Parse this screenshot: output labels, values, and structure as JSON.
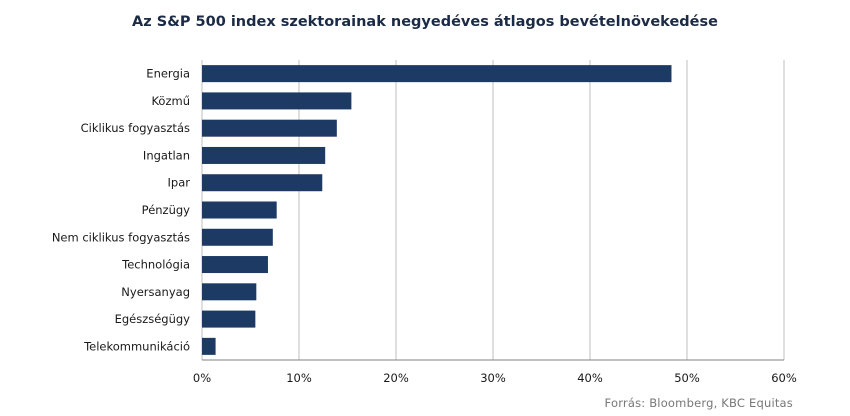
{
  "chart_data": {
    "type": "bar",
    "orientation": "horizontal",
    "title": "Az S&P 500 index szektorainak negyedéves átlagos bevételnövekedése",
    "categories": [
      "Energia",
      "Közmű",
      "Ciklikus fogyasztás",
      "Ingatlan",
      "Ipar",
      "Pénzügy",
      "Nem ciklikus fogyasztás",
      "Technológia",
      "Nyersanyag",
      "Egészségügy",
      "Telekommunikáció"
    ],
    "values": [
      48.4,
      15.4,
      13.9,
      12.7,
      12.4,
      7.7,
      7.3,
      6.8,
      5.6,
      5.5,
      1.4
    ],
    "xlim": [
      0,
      60
    ],
    "xticks": [
      "0%",
      "10%",
      "20%",
      "30%",
      "40%",
      "50%",
      "60%"
    ],
    "grid": true,
    "bar_color": "#1c3a64"
  },
  "source": "Forrás: Bloomberg, KBC Equitas"
}
